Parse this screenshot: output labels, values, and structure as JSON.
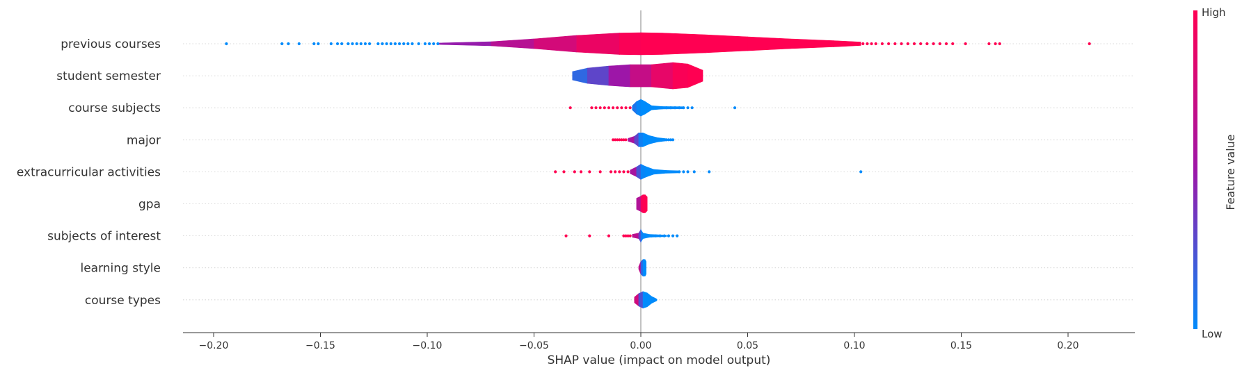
{
  "chart_data": {
    "type": "violin",
    "title": "",
    "xlabel": "SHAP value (impact on model output)",
    "ylabel": "",
    "xlim": [
      -0.215,
      0.23
    ],
    "x_ticks": [
      -0.2,
      -0.15,
      -0.1,
      -0.05,
      0.0,
      0.05,
      0.1,
      0.15,
      0.2
    ],
    "x_tick_labels": [
      "−0.20",
      "−0.15",
      "−0.10",
      "−0.05",
      "0.00",
      "0.05",
      "0.10",
      "0.15",
      "0.20"
    ],
    "grid": false,
    "colorbar": {
      "label": "Feature value",
      "high_label": "High",
      "low_label": "Low",
      "high_color": "#ff0052",
      "low_color": "#008bfb"
    },
    "features": [
      {
        "name": "previous courses",
        "violin": [
          [
            -0.095,
            1.0,
            0.4
          ],
          [
            -0.07,
            3.0,
            0.55
          ],
          [
            -0.05,
            7.0,
            0.7
          ],
          [
            -0.03,
            12.0,
            0.85
          ],
          [
            -0.01,
            15.5,
            0.95
          ],
          [
            0.0,
            16.0,
            1.0
          ],
          [
            0.01,
            15.5,
            1.0
          ],
          [
            0.03,
            13.0,
            1.0
          ],
          [
            0.05,
            10.0,
            1.0
          ],
          [
            0.07,
            7.0,
            1.0
          ],
          [
            0.09,
            4.5,
            1.0
          ],
          [
            0.103,
            2.5,
            1.0
          ]
        ],
        "points_low": [
          -0.194,
          -0.168,
          -0.165,
          -0.16,
          -0.153,
          -0.151,
          -0.145,
          -0.142,
          -0.14,
          -0.137,
          -0.135,
          -0.133,
          -0.131,
          -0.129,
          -0.127,
          -0.123,
          -0.121,
          -0.119,
          -0.117,
          -0.115,
          -0.113,
          -0.111,
          -0.109,
          -0.107,
          -0.104,
          -0.101,
          -0.099,
          -0.097,
          -0.095
        ],
        "points_high": [
          0.104,
          0.106,
          0.108,
          0.11,
          0.113,
          0.116,
          0.119,
          0.122,
          0.125,
          0.128,
          0.131,
          0.134,
          0.137,
          0.14,
          0.143,
          0.146,
          0.152,
          0.163,
          0.166,
          0.168,
          0.21
        ]
      },
      {
        "name": "student semester",
        "violin": [
          [
            -0.032,
            6.0,
            0.1
          ],
          [
            -0.025,
            11.0,
            0.2
          ],
          [
            -0.015,
            14.0,
            0.4
          ],
          [
            -0.005,
            16.0,
            0.6
          ],
          [
            0.005,
            16.0,
            0.8
          ],
          [
            0.015,
            19.0,
            0.95
          ],
          [
            0.022,
            17.0,
            1.0
          ],
          [
            0.029,
            8.0,
            1.0
          ]
        ],
        "points_low": [],
        "points_high": []
      },
      {
        "name": "course subjects",
        "violin": [
          [
            -0.004,
            3.0,
            0.15
          ],
          [
            -0.002,
            9.0,
            0.05
          ],
          [
            0.0,
            12.0,
            0.0
          ],
          [
            0.002,
            9.0,
            0.0
          ],
          [
            0.005,
            3.0,
            0.0
          ],
          [
            0.01,
            1.8,
            0.0
          ],
          [
            0.02,
            1.5,
            0.0
          ]
        ],
        "points_low": [
          0.006,
          0.008,
          0.01,
          0.012,
          0.014,
          0.016,
          0.018,
          0.02,
          0.022,
          0.024,
          0.044
        ],
        "points_high": [
          -0.033,
          -0.023,
          -0.021,
          -0.019,
          -0.017,
          -0.015,
          -0.013,
          -0.011,
          -0.009,
          -0.007,
          -0.005
        ]
      },
      {
        "name": "major",
        "violin": [
          [
            -0.006,
            2.0,
            0.6
          ],
          [
            -0.003,
            5.0,
            0.5
          ],
          [
            -0.001,
            10.0,
            0.1
          ],
          [
            0.001,
            10.0,
            0.0
          ],
          [
            0.004,
            6.0,
            0.0
          ],
          [
            0.008,
            3.0,
            0.0
          ],
          [
            0.012,
            1.5,
            0.0
          ]
        ],
        "points_low": [
          0.011,
          0.012,
          0.013,
          0.014,
          0.015
        ],
        "points_high": [
          -0.013,
          -0.012,
          -0.011,
          -0.01,
          -0.009,
          -0.008,
          -0.007
        ]
      },
      {
        "name": "extracurricular activities",
        "violin": [
          [
            -0.005,
            2.5,
            0.7
          ],
          [
            -0.002,
            7.0,
            0.4
          ],
          [
            0.0,
            11.0,
            0.05
          ],
          [
            0.002,
            8.0,
            0.0
          ],
          [
            0.006,
            3.5,
            0.0
          ],
          [
            0.012,
            2.0,
            0.0
          ],
          [
            0.018,
            1.5,
            0.0
          ]
        ],
        "points_low": [
          0.018,
          0.02,
          0.022,
          0.025,
          0.032,
          0.103
        ],
        "points_high": [
          -0.04,
          -0.036,
          -0.031,
          -0.028,
          -0.024,
          -0.019,
          -0.014,
          -0.012,
          -0.01,
          -0.008,
          -0.006
        ]
      },
      {
        "name": "gpa",
        "violin": [
          [
            -0.002,
            8.0,
            0.3
          ],
          [
            0.0,
            11.0,
            0.9
          ],
          [
            0.001,
            13.0,
            1.0
          ],
          [
            0.002,
            13.0,
            1.0
          ],
          [
            0.003,
            10.0,
            1.0
          ]
        ],
        "points_low": [],
        "points_high": []
      },
      {
        "name": "subjects of interest",
        "violin": [
          [
            -0.004,
            2.0,
            0.8
          ],
          [
            -0.001,
            4.0,
            0.5
          ],
          [
            0.0,
            9.0,
            0.1
          ],
          [
            0.001,
            4.0,
            0.0
          ],
          [
            0.004,
            2.0,
            0.0
          ],
          [
            0.008,
            1.5,
            0.0
          ],
          [
            0.012,
            1.2,
            0.0
          ]
        ],
        "points_low": [
          0.005,
          0.007,
          0.009,
          0.011,
          0.013,
          0.015,
          0.017
        ],
        "points_high": [
          -0.035,
          -0.024,
          -0.015,
          -0.008,
          -0.007,
          -0.006,
          -0.005
        ]
      },
      {
        "name": "learning style",
        "violin": [
          [
            -0.001,
            2.0,
            1.0
          ],
          [
            0.0,
            9.0,
            0.3
          ],
          [
            0.001,
            12.0,
            0.0
          ],
          [
            0.002,
            12.0,
            0.0
          ],
          [
            0.0025,
            9.0,
            0.0
          ]
        ],
        "points_low": [],
        "points_high": []
      },
      {
        "name": "course types",
        "violin": [
          [
            -0.003,
            4.0,
            1.0
          ],
          [
            -0.001,
            9.0,
            0.5
          ],
          [
            0.001,
            12.0,
            0.0
          ],
          [
            0.003,
            10.0,
            0.0
          ],
          [
            0.005,
            5.0,
            0.0
          ],
          [
            0.007,
            2.0,
            0.0
          ]
        ],
        "points_low": [
          0.006,
          0.007
        ],
        "points_high": []
      }
    ]
  }
}
